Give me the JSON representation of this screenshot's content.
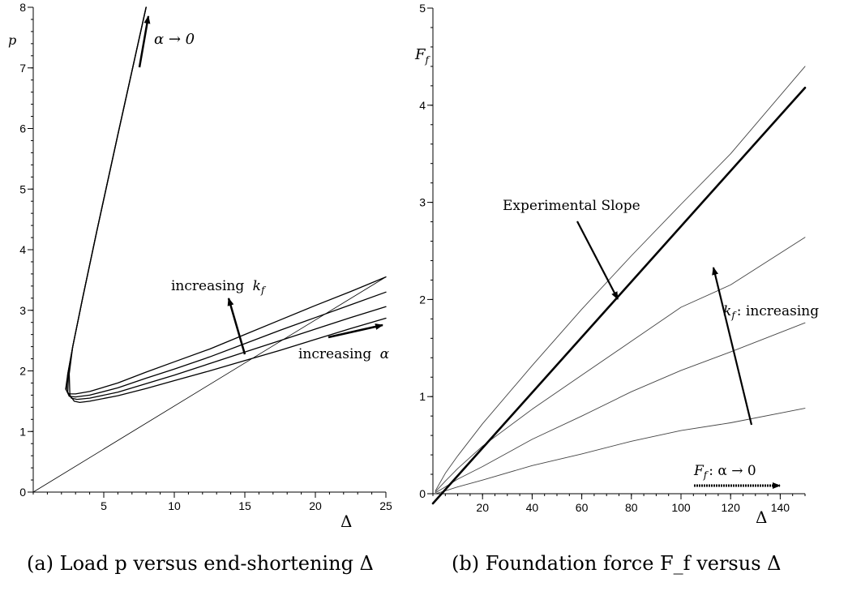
{
  "chart_data": [
    {
      "type": "line",
      "caption": "(a) Load p versus end-shortening Δ",
      "xlabel": "Δ",
      "ylabel": "p",
      "xlim": [
        0,
        25
      ],
      "ylim": [
        0,
        8
      ],
      "xticks": [
        5,
        10,
        15,
        20,
        25
      ],
      "yticks": [
        0,
        1,
        2,
        3,
        4,
        5,
        6,
        7,
        8
      ],
      "grid": false,
      "series": [
        {
          "x": [
            8.0,
            6.0,
            4.5,
            3.5,
            2.8,
            2.45,
            2.3,
            2.5,
            3.0,
            4.0,
            6.0,
            8.0,
            10.0,
            12.5,
            15.0,
            17.5,
            20.0,
            22.5,
            25.0
          ],
          "y": [
            8.0,
            5.9,
            4.3,
            3.2,
            2.4,
            1.95,
            1.7,
            1.62,
            1.62,
            1.66,
            1.8,
            1.98,
            2.15,
            2.36,
            2.6,
            2.84,
            3.08,
            3.31,
            3.55
          ]
        },
        {
          "x": [
            8.0,
            6.0,
            4.5,
            3.5,
            2.8,
            2.45,
            2.35,
            2.55,
            3.0,
            4.0,
            6.0,
            8.0,
            10.0,
            12.5,
            15.0,
            17.5,
            20.0,
            22.5,
            25.0
          ],
          "y": [
            8.0,
            5.9,
            4.3,
            3.2,
            2.4,
            1.95,
            1.68,
            1.58,
            1.57,
            1.6,
            1.72,
            1.88,
            2.03,
            2.23,
            2.45,
            2.67,
            2.88,
            3.09,
            3.3
          ]
        },
        {
          "x": [
            8.0,
            6.0,
            4.5,
            3.5,
            2.8,
            2.5,
            2.45,
            2.7,
            3.1,
            4.0,
            6.0,
            8.0,
            10.0,
            12.5,
            15.0,
            17.5,
            20.0,
            22.5,
            25.0
          ],
          "y": [
            8.0,
            5.9,
            4.3,
            3.2,
            2.4,
            1.95,
            1.65,
            1.55,
            1.53,
            1.55,
            1.65,
            1.79,
            1.93,
            2.12,
            2.31,
            2.5,
            2.69,
            2.88,
            3.06
          ]
        },
        {
          "x": [
            8.0,
            6.0,
            4.5,
            3.5,
            2.8,
            2.55,
            2.6,
            2.9,
            3.3,
            4.0,
            6.0,
            8.0,
            10.0,
            12.5,
            15.0,
            17.5,
            20.0,
            22.5,
            25.0
          ],
          "y": [
            8.0,
            5.9,
            4.3,
            3.2,
            2.4,
            1.95,
            1.6,
            1.5,
            1.48,
            1.5,
            1.59,
            1.71,
            1.84,
            2.0,
            2.17,
            2.34,
            2.52,
            2.7,
            2.87
          ]
        },
        {
          "x": [
            0,
            25
          ],
          "y": [
            0,
            3.55
          ],
          "thin": true
        }
      ],
      "annotations": [
        {
          "text": "increasing",
          "math": "k",
          "sub": "f"
        },
        {
          "text": "increasing",
          "math": "α"
        },
        {
          "text": "α → 0"
        }
      ]
    },
    {
      "type": "line",
      "caption": "(b) Foundation force F_f versus Δ",
      "xlabel": "Δ",
      "ylabel": "F_f",
      "xlim": [
        0,
        150
      ],
      "ylim": [
        0,
        5
      ],
      "xticks": [
        20,
        40,
        60,
        80,
        100,
        120,
        140
      ],
      "yticks": [
        0,
        1,
        2,
        3,
        4,
        5
      ],
      "grid": false,
      "series": [
        {
          "x": [
            1,
            5,
            10,
            20,
            40,
            60,
            80,
            100,
            120,
            150
          ],
          "y": [
            0.03,
            0.21,
            0.39,
            0.72,
            1.32,
            1.9,
            2.45,
            2.98,
            3.5,
            4.4
          ],
          "thin": true
        },
        {
          "x": [
            1,
            5,
            10,
            20,
            40,
            60,
            80,
            100,
            120,
            150
          ],
          "y": [
            0.02,
            0.13,
            0.26,
            0.49,
            0.87,
            1.22,
            1.57,
            1.92,
            2.15,
            2.64
          ],
          "thin": true
        },
        {
          "x": [
            1,
            5,
            10,
            20,
            40,
            60,
            80,
            100,
            120,
            150
          ],
          "y": [
            0.01,
            0.07,
            0.15,
            0.28,
            0.56,
            0.8,
            1.05,
            1.27,
            1.46,
            1.76
          ],
          "thin": true
        },
        {
          "x": [
            1,
            5,
            10,
            20,
            40,
            60,
            80,
            100,
            120,
            150
          ],
          "y": [
            0.0,
            0.03,
            0.07,
            0.14,
            0.29,
            0.41,
            0.54,
            0.65,
            0.73,
            0.88
          ],
          "thin": true
        },
        {
          "x": [
            0,
            150
          ],
          "y": [
            -0.1,
            4.18
          ],
          "thick": true
        }
      ],
      "annotations": [
        {
          "text": "Experimental Slope"
        },
        {
          "math": "k",
          "sub": "f",
          "text": ":  increasing"
        },
        {
          "math": "F",
          "sub": "f",
          "text": ":  α → 0"
        }
      ]
    }
  ]
}
